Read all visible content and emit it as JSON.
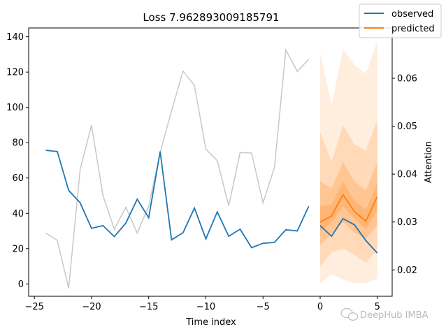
{
  "chart_data": {
    "type": "line",
    "title": "Loss 7.962893009185791",
    "xlabel": "Time index",
    "ylabel": "",
    "y2label": "Attention",
    "xlim": [
      -25.5,
      6.3
    ],
    "ylim": [
      -7,
      145
    ],
    "y2lim": [
      0.0145,
      0.0705
    ],
    "xticks": [
      -25,
      -20,
      -15,
      -10,
      -5,
      0,
      5
    ],
    "yticks": [
      0,
      20,
      40,
      60,
      80,
      100,
      120,
      140
    ],
    "y2ticks": [
      0.02,
      0.03,
      0.04,
      0.05,
      0.06
    ],
    "grid": false,
    "legend": "top-right",
    "colors": {
      "observed": "#1f77b4",
      "predicted": "#ff7f0e",
      "attention": "#c8c8c8",
      "band": "#ff7f0e"
    },
    "observed": {
      "name": "observed",
      "x": [
        -24,
        -23,
        -22,
        -21,
        -20,
        -19,
        -18,
        -17,
        -16,
        -15,
        -14,
        -13,
        -12,
        -11,
        -10,
        -9,
        -8,
        -7,
        -6,
        -5,
        -4,
        -3,
        -2,
        -1
      ],
      "y": [
        75.7,
        75.0,
        53.0,
        46.0,
        31.5,
        33.0,
        26.8,
        34.5,
        48.0,
        37.5,
        75.0,
        25.0,
        29.0,
        43.0,
        25.5,
        40.8,
        27.0,
        31.0,
        20.5,
        23.0,
        23.5,
        30.7,
        30.0,
        44.0
      ]
    },
    "observed_future": {
      "x": [
        0,
        1,
        2,
        3,
        4,
        5
      ],
      "y": [
        33.0,
        27.0,
        37.0,
        33.5,
        24.5,
        17.5
      ]
    },
    "predicted": {
      "name": "predicted",
      "x": [
        0,
        1,
        2,
        3,
        4,
        5
      ],
      "y": [
        35.0,
        38.5,
        50.5,
        41.0,
        35.5,
        49.5
      ]
    },
    "prediction_bands": [
      {
        "lower": [
          0.5,
          5.5,
          2.5,
          0.5,
          0.5,
          3.0
        ],
        "upper": [
          130.5,
          101.5,
          133.0,
          124.0,
          119.0,
          137.5
        ],
        "opacity": 0.14
      },
      {
        "lower": [
          10.0,
          18.0,
          20.0,
          16.5,
          12.0,
          19.0
        ],
        "upper": [
          86.0,
          69.0,
          90.0,
          79.0,
          75.5,
          93.0
        ],
        "opacity": 0.18
      },
      {
        "lower": [
          22.0,
          28.5,
          35.0,
          29.0,
          25.5,
          33.0
        ],
        "upper": [
          58.0,
          54.0,
          69.0,
          58.0,
          53.0,
          69.0
        ],
        "opacity": 0.22
      },
      {
        "lower": [
          30.0,
          35.0,
          44.0,
          37.0,
          31.0,
          42.0
        ],
        "upper": [
          44.0,
          45.0,
          58.0,
          47.0,
          42.0,
          57.0
        ],
        "opacity": 0.22
      }
    ],
    "attention": {
      "x": [
        -24,
        -23,
        -22,
        -21,
        -20,
        -19,
        -18,
        -17,
        -16,
        -15,
        -14,
        -13,
        -12,
        -11,
        -10,
        -9,
        -8,
        -7,
        -6,
        -5,
        -4,
        -3,
        -2,
        -1
      ],
      "y": [
        0.0277,
        0.0262,
        0.0162,
        0.0409,
        0.0502,
        0.0355,
        0.0285,
        0.0331,
        0.0277,
        0.0333,
        0.0445,
        0.0532,
        0.0615,
        0.0585,
        0.0452,
        0.0428,
        0.0334,
        0.0445,
        0.0444,
        0.034,
        0.0414,
        0.0659,
        0.0614,
        0.064
      ]
    }
  },
  "legend": {
    "observed_label": "observed",
    "predicted_label": "predicted"
  },
  "watermark": {
    "text": "DeepHub IMBA"
  }
}
